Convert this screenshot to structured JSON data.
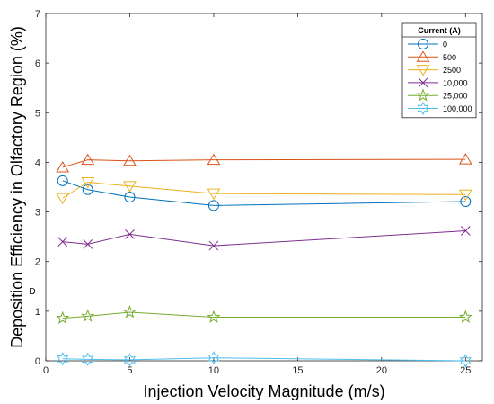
{
  "chart_data": {
    "type": "line",
    "xlabel": "Injection Velocity Magnitude (m/s)",
    "ylabel": "Deposition Efficiency in Olfactory Region (%)",
    "ylabel_stray": "D",
    "xlim": [
      0,
      26
    ],
    "ylim": [
      0,
      7
    ],
    "xticks": [
      "0",
      "5",
      "10",
      "15",
      "20",
      "25"
    ],
    "yticks": [
      "0",
      "1",
      "2",
      "3",
      "4",
      "5",
      "6",
      "7"
    ],
    "grid": false,
    "legend_title": "Current (A)",
    "legend_position": "top-right",
    "x": [
      1,
      2.5,
      5,
      10,
      25
    ],
    "series": [
      {
        "name": "0",
        "values": [
          3.63,
          3.45,
          3.3,
          3.13,
          3.21
        ],
        "color": "#0072BD",
        "marker": "circle"
      },
      {
        "name": "500",
        "values": [
          3.9,
          4.05,
          4.03,
          4.05,
          4.06
        ],
        "color": "#D95319",
        "marker": "triangle-up"
      },
      {
        "name": "2500",
        "values": [
          3.28,
          3.6,
          3.52,
          3.37,
          3.35
        ],
        "color": "#EDB120",
        "marker": "triangle-down"
      },
      {
        "name": "10,000",
        "values": [
          2.4,
          2.35,
          2.55,
          2.32,
          2.62
        ],
        "color": "#7E2F8E",
        "marker": "x"
      },
      {
        "name": "25,000",
        "values": [
          0.86,
          0.9,
          0.98,
          0.88,
          0.88
        ],
        "color": "#77AC30",
        "marker": "pentagram"
      },
      {
        "name": "100,000",
        "values": [
          0.04,
          0.03,
          0.02,
          0.06,
          0.0
        ],
        "color": "#4DBEEE",
        "marker": "hexagram"
      }
    ]
  }
}
